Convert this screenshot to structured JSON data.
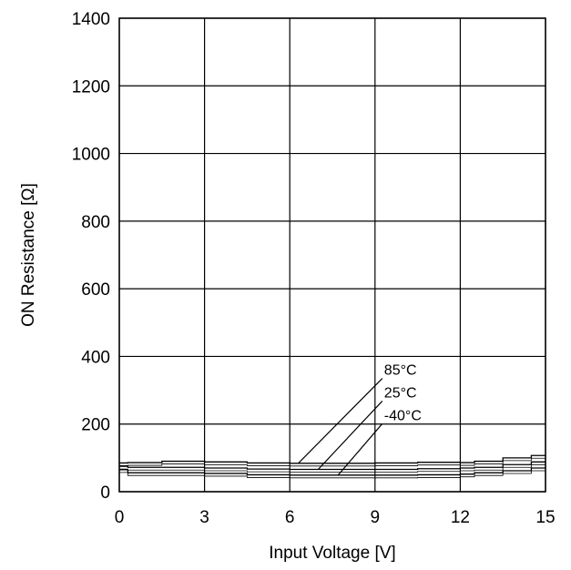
{
  "chart_data": {
    "type": "line",
    "title": "",
    "xlabel": "Input Voltage [V]",
    "ylabel": "ON Resistance [Ω]",
    "xlim": [
      0,
      15
    ],
    "ylim": [
      0,
      1400
    ],
    "xticks": [
      0,
      3,
      6,
      9,
      12,
      15
    ],
    "yticks": [
      0,
      200,
      400,
      600,
      800,
      1000,
      1200,
      1400
    ],
    "xtick_labels": [
      "0",
      "3",
      "6",
      "9",
      "12",
      "15"
    ],
    "ytick_labels": [
      "0",
      "200",
      "400",
      "600",
      "800",
      "1000",
      "1200",
      "1400"
    ],
    "grid": true,
    "legend": "none",
    "series": [
      {
        "name": "85°C",
        "color": "#000000",
        "x": [
          0,
          0.3,
          1.5,
          3.0,
          4.5,
          6.0,
          7.5,
          9.0,
          10.5,
          12.0,
          12.5,
          13.5,
          14.5,
          15.0
        ],
        "values": [
          85,
          86,
          90,
          88,
          85,
          84,
          84,
          85,
          87,
          86,
          90,
          100,
          107,
          108
        ]
      },
      {
        "name": "25°C",
        "color": "#000000",
        "x": [
          0,
          0.3,
          1.5,
          3.0,
          4.5,
          6.0,
          7.5,
          9.0,
          10.5,
          12.0,
          12.5,
          13.5,
          14.5,
          15.0
        ],
        "values": [
          75,
          72,
          72,
          70,
          67,
          66,
          66,
          66,
          68,
          70,
          72,
          80,
          88,
          88
        ]
      },
      {
        "name": "-40°C",
        "color": "#000000",
        "x": [
          0,
          0.3,
          1.5,
          3.0,
          4.5,
          6.0,
          7.5,
          9.0,
          10.5,
          12.0,
          12.5,
          13.5,
          14.5,
          15.0
        ],
        "values": [
          65,
          56,
          56,
          54,
          50,
          49,
          49,
          49,
          50,
          52,
          56,
          62,
          70,
          70
        ]
      }
    ],
    "annotations": [
      {
        "text": "85°C",
        "series": "85°C",
        "label_x": 9.0,
        "label_y": 362,
        "pointer_x": 6.3,
        "pointer_y": 84
      },
      {
        "text": "25°C",
        "series": "25°C",
        "label_x": 9.0,
        "label_y": 295,
        "pointer_x": 7.0,
        "pointer_y": 66
      },
      {
        "text": "-40°C",
        "series": "-40°C",
        "label_x": 9.0,
        "label_y": 228,
        "pointer_x": 7.7,
        "pointer_y": 49
      }
    ]
  }
}
